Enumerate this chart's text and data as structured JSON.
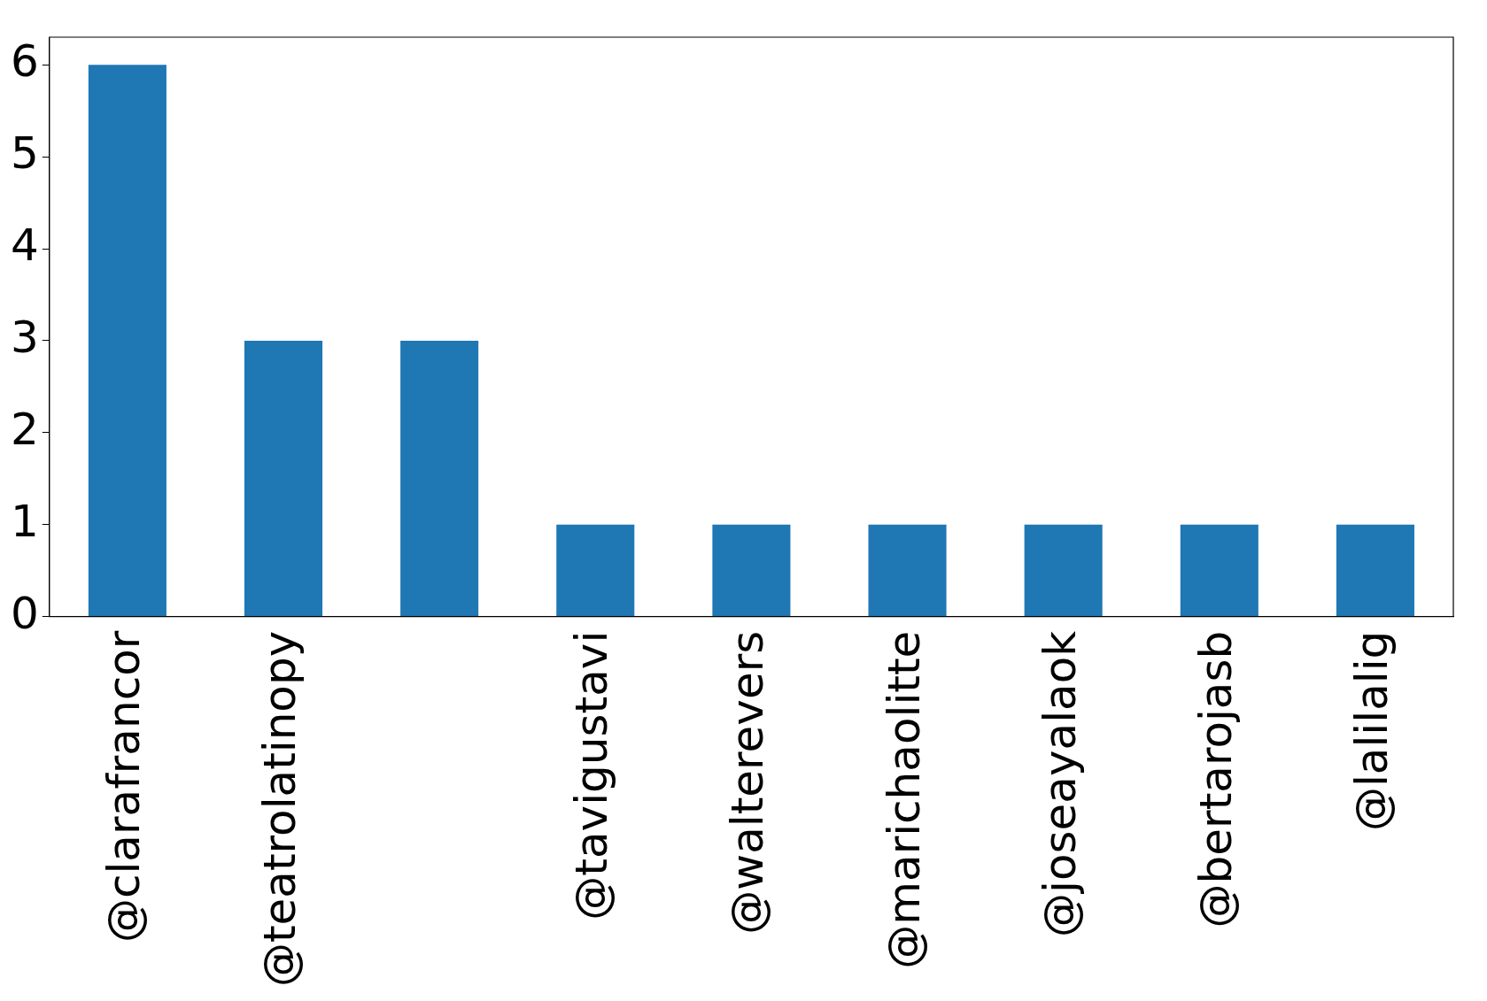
{
  "chart_data": {
    "type": "bar",
    "categories": [
      "@clarafrancor",
      "@teatrolatinopy",
      null,
      "@tavigustavi",
      "@walterevers",
      "@marichaolitte",
      "@joseayalaok",
      "@bertarojasb",
      "@lalilalig"
    ],
    "values": [
      6,
      3,
      3,
      1,
      1,
      1,
      1,
      1,
      1
    ],
    "color": "#1f77b4",
    "ylim": [
      0,
      6.3
    ],
    "yticks": [
      0,
      1,
      2,
      3,
      4,
      5,
      6
    ],
    "grid": false
  }
}
